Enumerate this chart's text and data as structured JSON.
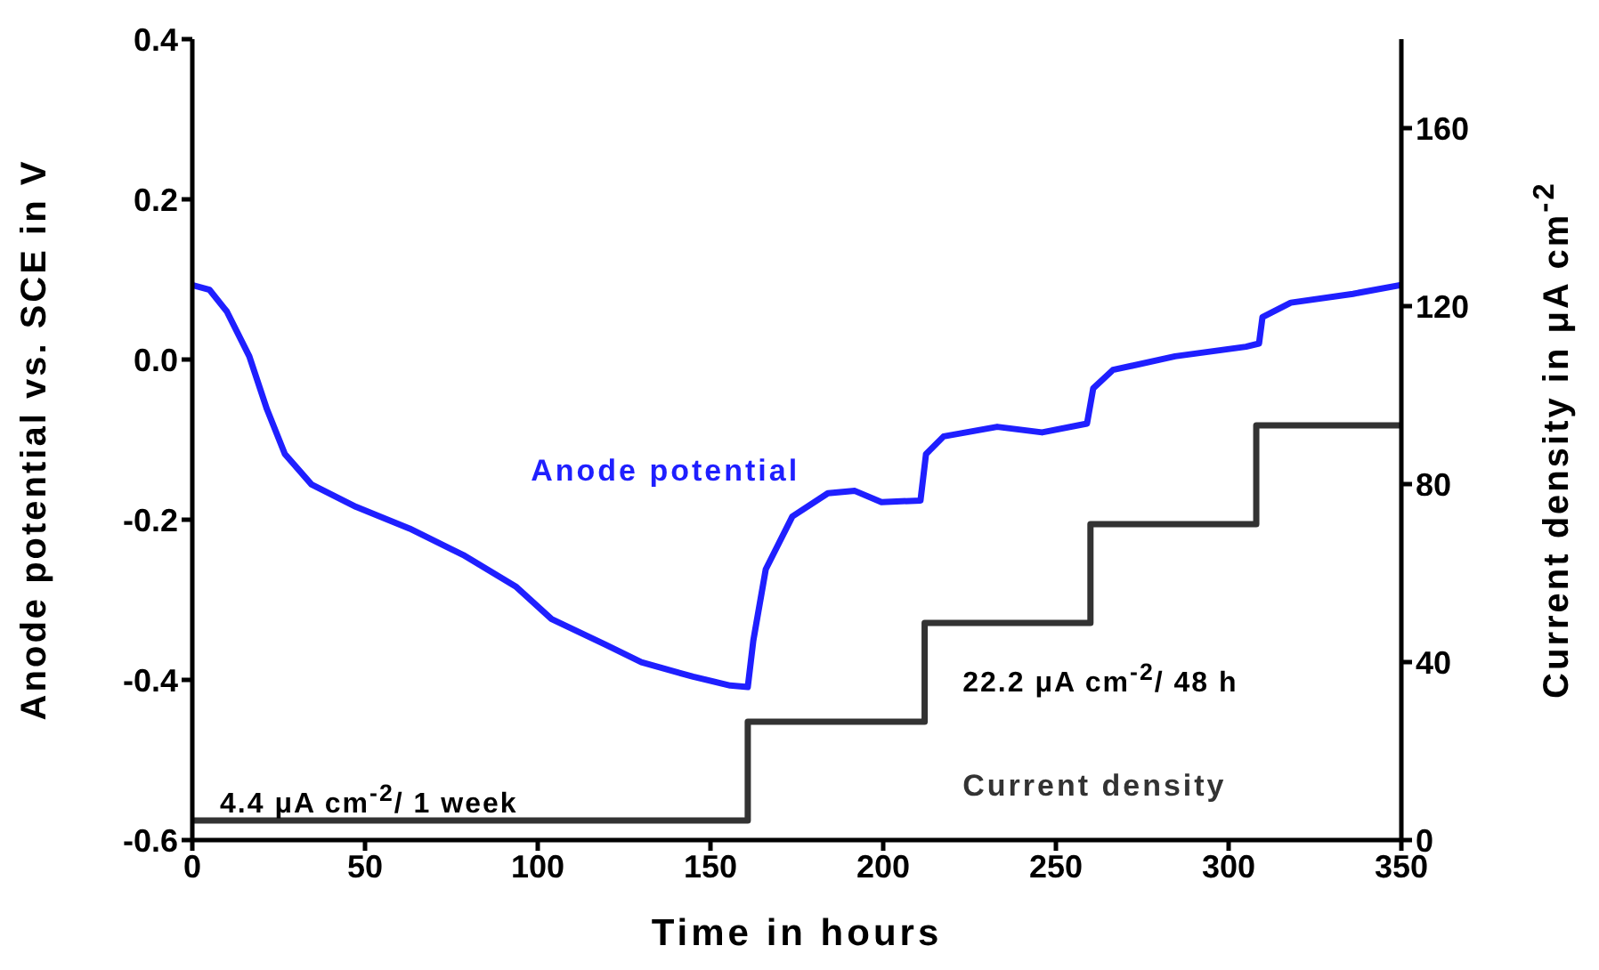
{
  "chart_data": {
    "type": "line",
    "xlabel": "Time in hours",
    "ylabel": "Anode potential vs. SCE in V",
    "y2label": "Current density in μA cm$^{-2}$",
    "annotations": [
      "4.4 μA cm$^{-2}$/ 1 week",
      "22.2 μA cm$^{-2}$/ 48 h"
    ],
    "series": [
      {
        "name": "Anode potential",
        "color": "#1f1fff",
        "x": [
          0,
          5,
          10,
          16.5,
          21.6,
          26.8,
          34.5,
          47.4,
          62.9,
          78.4,
          93.8,
          104,
          119.6,
          130,
          145,
          155.7,
          160.8,
          162.4,
          166,
          173.7,
          184,
          191.8,
          199.5,
          210.8,
          212.4,
          217.5,
          233,
          246,
          259,
          260.8,
          266.5,
          284.5,
          305,
          308.8,
          309.8,
          318,
          336,
          350
        ],
        "values": [
          0.093,
          0.087,
          0.06,
          0.004,
          -0.062,
          -0.118,
          -0.156,
          -0.184,
          -0.211,
          -0.244,
          -0.284,
          -0.324,
          -0.356,
          -0.378,
          -0.396,
          -0.407,
          -0.409,
          -0.351,
          -0.262,
          -0.196,
          -0.167,
          -0.164,
          -0.178,
          -0.176,
          -0.118,
          -0.096,
          -0.084,
          -0.091,
          -0.08,
          -0.036,
          -0.013,
          0.004,
          0.016,
          0.02,
          0.053,
          0.071,
          0.082,
          0.093
        ]
      },
      {
        "name": "Current density",
        "type": "step",
        "axis": "y2",
        "color": "#333333",
        "x": [
          0,
          160.8,
          212,
          260,
          308,
          350
        ],
        "values": [
          4.4,
          26.6,
          48.8,
          71,
          93.2,
          93.2
        ]
      }
    ],
    "xlim": [
      0,
      350
    ],
    "xticks": [
      0,
      50,
      100,
      150,
      200,
      250,
      300,
      350
    ],
    "ylim": [
      -0.6,
      0.4
    ],
    "yticks": [
      -0.6,
      -0.4,
      -0.2,
      {
        "value": 0,
        "label": "0.0"
      },
      0.2,
      0.4
    ],
    "y2lim": [
      0,
      180
    ],
    "y2ticks": [
      0,
      40,
      80,
      120,
      160
    ],
    "grid": false,
    "legend": false
  }
}
